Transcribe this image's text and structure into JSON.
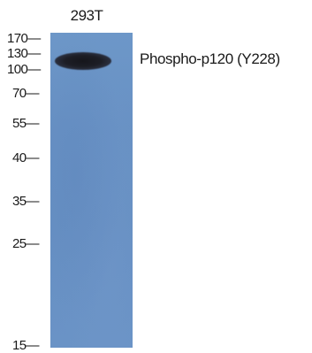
{
  "sample": "293T",
  "band_label": "Phospho-p120 (Y228)",
  "markers": [
    {
      "label": "170—"
    },
    {
      "label": "130—"
    },
    {
      "label": "100—"
    },
    {
      "label": "70—"
    },
    {
      "label": "55—"
    },
    {
      "label": "40—"
    },
    {
      "label": "35—"
    },
    {
      "label": "25—"
    },
    {
      "label": "15—"
    }
  ],
  "colors": {
    "membrane": "#6891c4",
    "band": "#1d1e26"
  }
}
